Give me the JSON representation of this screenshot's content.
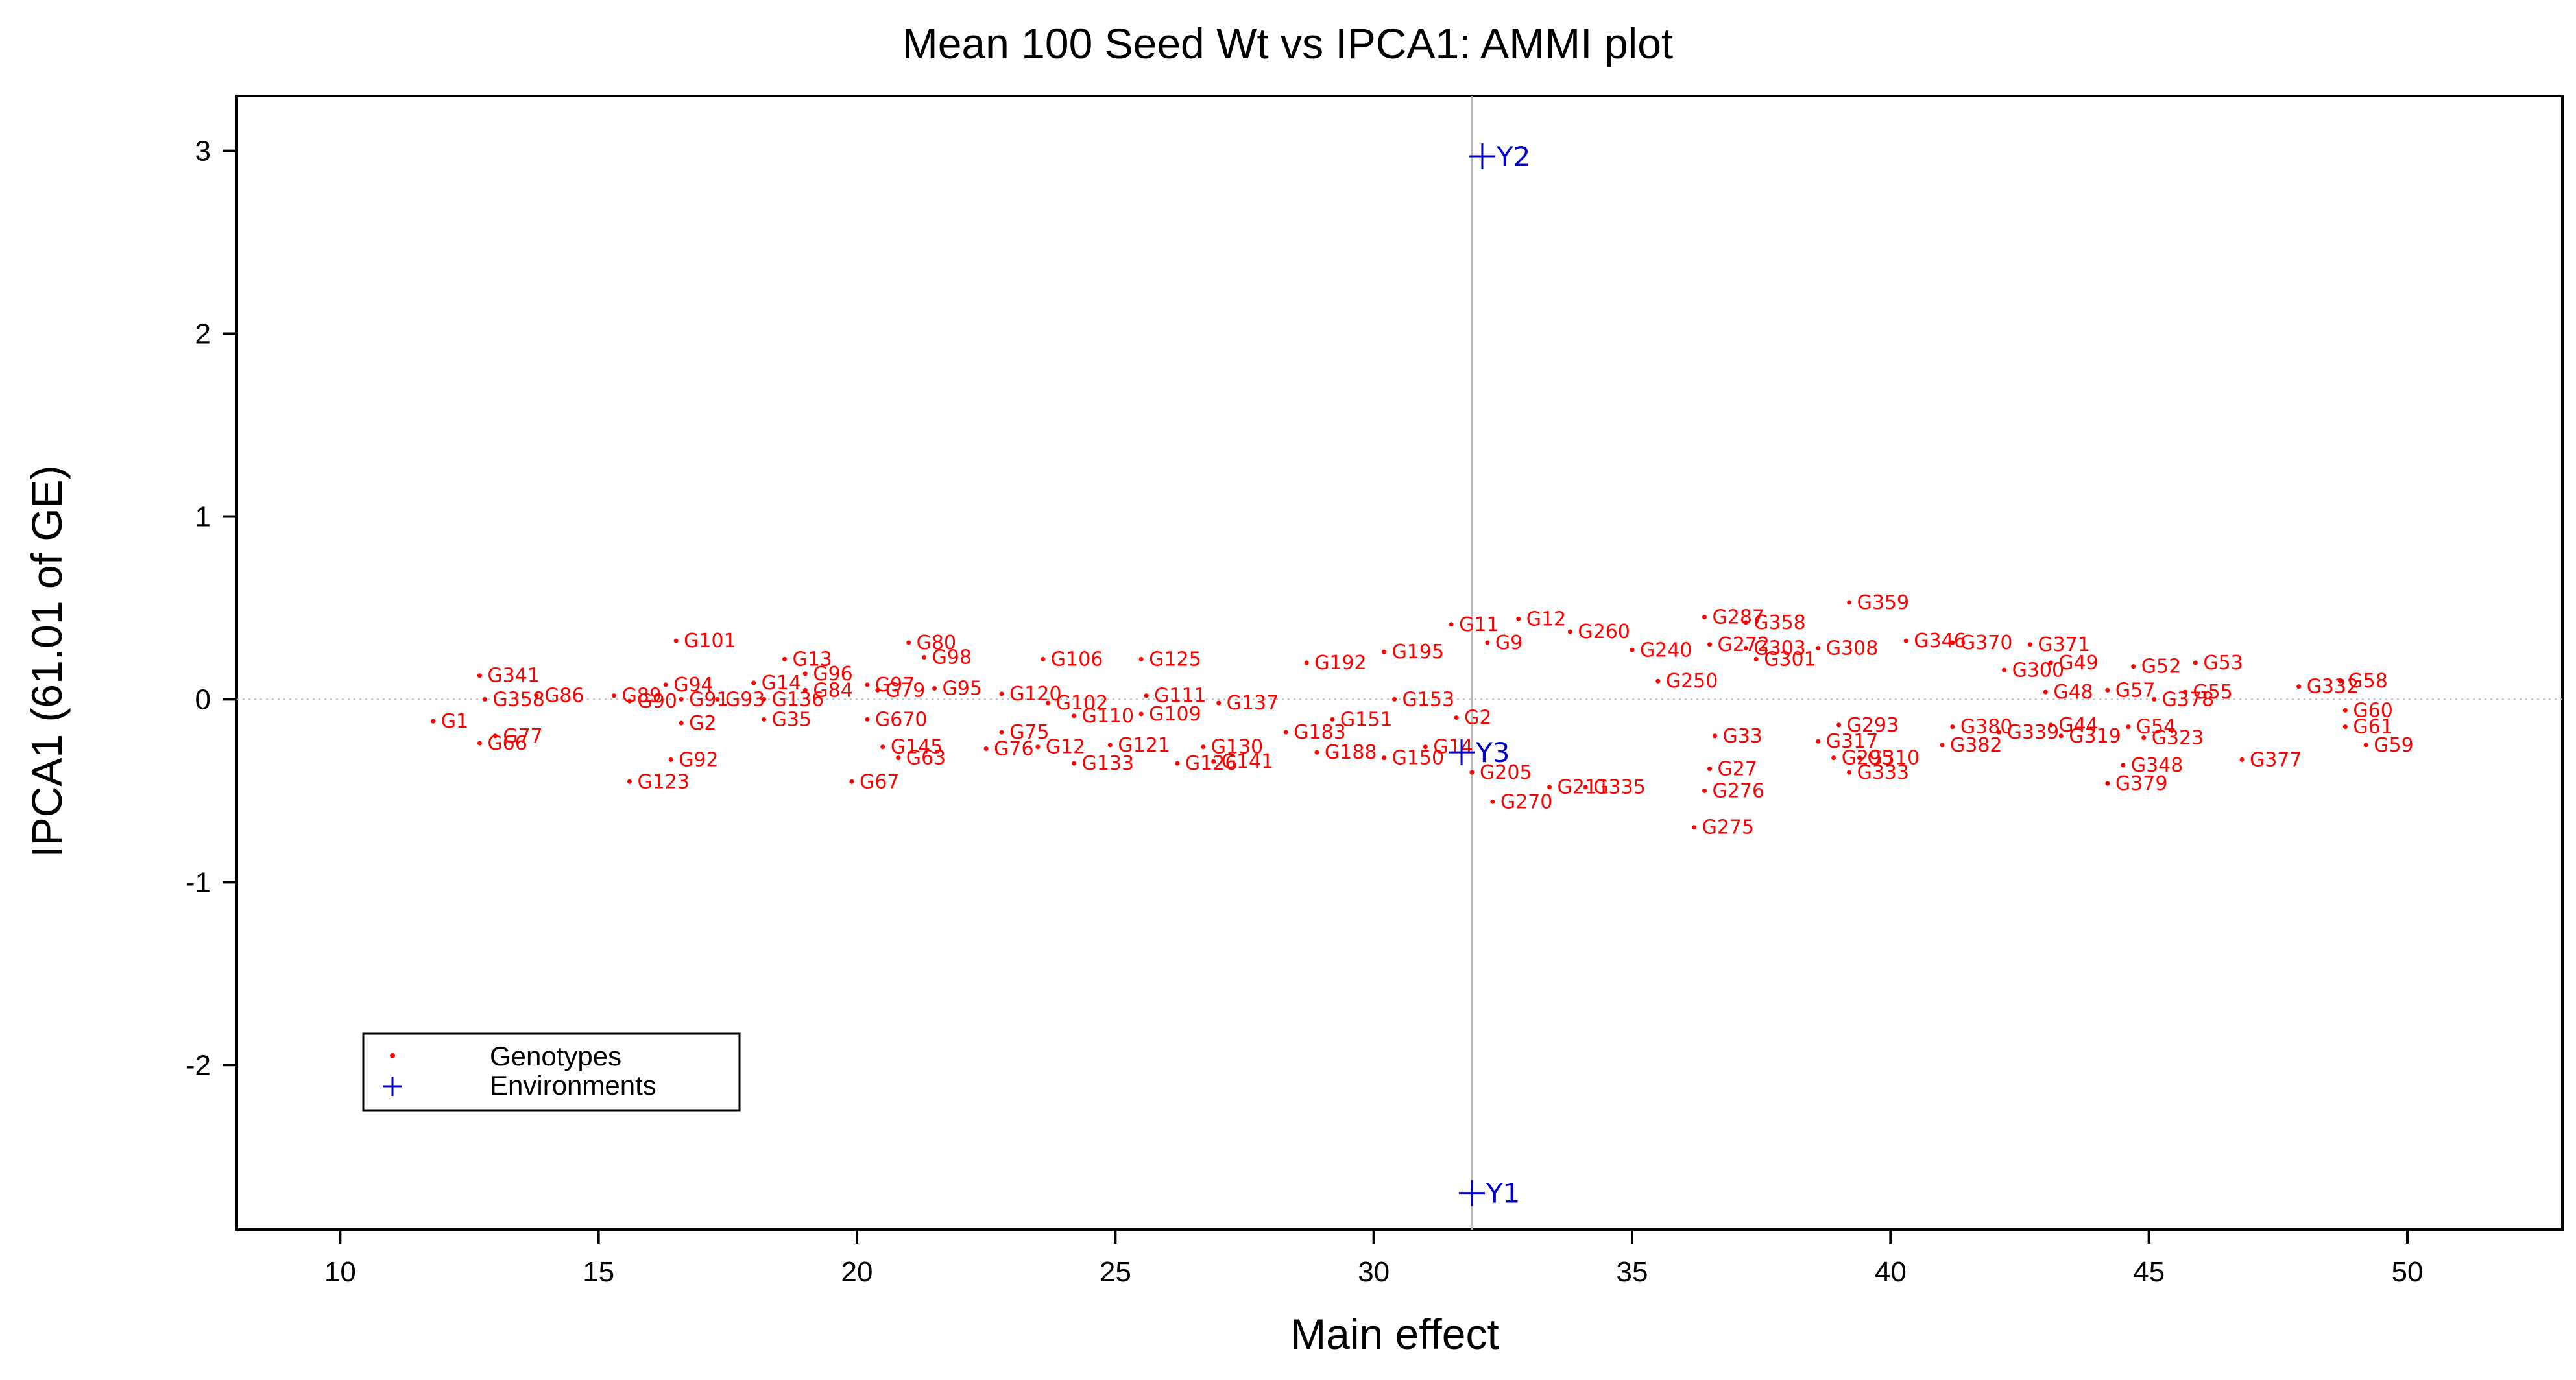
{
  "chart_data": {
    "type": "scatter",
    "title": "Mean 100 Seed Wt vs IPCA1: AMMI plot",
    "xlabel": "Main effect",
    "ylabel": "IPCA1 (61.01 of GE)",
    "xlim": [
      8,
      53
    ],
    "ylim": [
      -2.9,
      3.3
    ],
    "xticks": [
      10,
      15,
      20,
      25,
      30,
      35,
      40,
      45,
      50
    ],
    "yticks": [
      -2,
      -1,
      0,
      1,
      2,
      3
    ],
    "grid": false,
    "reference_lines": {
      "x": 31.9,
      "y": 0
    },
    "legend": {
      "position": "bottom-left",
      "entries": [
        {
          "name": "Genotypes",
          "marker": "dot",
          "color": "#ff0000"
        },
        {
          "name": "Environments",
          "marker": "plus",
          "color": "#0000cc"
        }
      ]
    },
    "series": [
      {
        "name": "Environments",
        "color": "#0000cc",
        "points": [
          {
            "label": "Y2",
            "x": 32.1,
            "y": 2.97
          },
          {
            "label": "Y1",
            "x": 31.9,
            "y": -2.7
          },
          {
            "label": "Y3",
            "x": 31.7,
            "y": -0.29
          }
        ]
      },
      {
        "name": "Genotypes",
        "color": "#ff0000",
        "points": [
          {
            "label": "G1",
            "x": 11.8,
            "y": -0.12
          },
          {
            "label": "G341",
            "x": 12.7,
            "y": 0.13
          },
          {
            "label": "G358",
            "x": 12.8,
            "y": 0.0
          },
          {
            "label": "G66",
            "x": 12.7,
            "y": -0.24
          },
          {
            "label": "G77",
            "x": 13.0,
            "y": -0.2
          },
          {
            "label": "G86",
            "x": 13.8,
            "y": 0.02
          },
          {
            "label": "G89",
            "x": 15.3,
            "y": 0.02
          },
          {
            "label": "G90",
            "x": 15.6,
            "y": -0.01
          },
          {
            "label": "G123",
            "x": 15.6,
            "y": -0.45
          },
          {
            "label": "G94",
            "x": 16.3,
            "y": 0.08
          },
          {
            "label": "G92",
            "x": 16.4,
            "y": -0.33
          },
          {
            "label": "G101",
            "x": 16.5,
            "y": 0.32
          },
          {
            "label": "G2",
            "x": 16.6,
            "y": -0.13
          },
          {
            "label": "G91",
            "x": 16.6,
            "y": 0.0
          },
          {
            "label": "G93",
            "x": 17.3,
            "y": 0.0
          },
          {
            "label": "G35",
            "x": 18.2,
            "y": -0.11
          },
          {
            "label": "G136",
            "x": 18.2,
            "y": 0.0
          },
          {
            "label": "G14",
            "x": 18.0,
            "y": 0.09
          },
          {
            "label": "G13",
            "x": 18.6,
            "y": 0.22
          },
          {
            "label": "G96",
            "x": 19.0,
            "y": 0.14
          },
          {
            "label": "G84",
            "x": 19.0,
            "y": 0.05
          },
          {
            "label": "G67",
            "x": 19.9,
            "y": -0.45
          },
          {
            "label": "G97",
            "x": 20.2,
            "y": 0.08
          },
          {
            "label": "G79",
            "x": 20.4,
            "y": 0.05
          },
          {
            "label": "G670",
            "x": 20.2,
            "y": -0.11
          },
          {
            "label": "G145",
            "x": 20.5,
            "y": -0.26
          },
          {
            "label": "G63",
            "x": 20.8,
            "y": -0.32
          },
          {
            "label": "G80",
            "x": 21.0,
            "y": 0.31
          },
          {
            "label": "G98",
            "x": 21.3,
            "y": 0.23
          },
          {
            "label": "G95",
            "x": 21.5,
            "y": 0.06
          },
          {
            "label": "G76",
            "x": 22.5,
            "y": -0.27
          },
          {
            "label": "G75",
            "x": 22.8,
            "y": -0.18
          },
          {
            "label": "G120",
            "x": 22.8,
            "y": 0.03
          },
          {
            "label": "G106",
            "x": 23.6,
            "y": 0.22
          },
          {
            "label": "G12",
            "x": 23.5,
            "y": -0.26
          },
          {
            "label": "G102",
            "x": 23.7,
            "y": -0.02
          },
          {
            "label": "G133",
            "x": 24.2,
            "y": -0.35
          },
          {
            "label": "G110",
            "x": 24.2,
            "y": -0.09
          },
          {
            "label": "G121",
            "x": 24.9,
            "y": -0.25
          },
          {
            "label": "G109",
            "x": 25.5,
            "y": -0.08
          },
          {
            "label": "G125",
            "x": 25.5,
            "y": 0.22
          },
          {
            "label": "G111",
            "x": 25.6,
            "y": 0.02
          },
          {
            "label": "G126",
            "x": 26.2,
            "y": -0.35
          },
          {
            "label": "G141",
            "x": 26.9,
            "y": -0.34
          },
          {
            "label": "G130",
            "x": 26.7,
            "y": -0.26
          },
          {
            "label": "G137",
            "x": 27.0,
            "y": -0.02
          },
          {
            "label": "G183",
            "x": 28.3,
            "y": -0.18
          },
          {
            "label": "G188",
            "x": 28.9,
            "y": -0.29
          },
          {
            "label": "G192",
            "x": 28.7,
            "y": 0.2
          },
          {
            "label": "G151",
            "x": 29.2,
            "y": -0.11
          },
          {
            "label": "G195",
            "x": 30.2,
            "y": 0.26
          },
          {
            "label": "G150",
            "x": 30.2,
            "y": -0.32
          },
          {
            "label": "G14",
            "x": 31.0,
            "y": -0.26
          },
          {
            "label": "G153",
            "x": 30.4,
            "y": 0.0
          },
          {
            "label": "G11",
            "x": 31.5,
            "y": 0.41
          },
          {
            "label": "G2",
            "x": 31.6,
            "y": -0.1
          },
          {
            "label": "G12",
            "x": 32.8,
            "y": 0.44
          },
          {
            "label": "G9",
            "x": 32.2,
            "y": 0.31
          },
          {
            "label": "G205",
            "x": 31.9,
            "y": -0.4
          },
          {
            "label": "G270",
            "x": 32.3,
            "y": -0.56
          },
          {
            "label": "G260",
            "x": 33.8,
            "y": 0.37
          },
          {
            "label": "G211",
            "x": 33.4,
            "y": -0.48
          },
          {
            "label": "G335",
            "x": 34.1,
            "y": -0.48
          },
          {
            "label": "G240",
            "x": 35.0,
            "y": 0.27
          },
          {
            "label": "G250",
            "x": 35.5,
            "y": 0.1
          },
          {
            "label": "G275",
            "x": 36.2,
            "y": -0.7
          },
          {
            "label": "G276",
            "x": 36.4,
            "y": -0.5
          },
          {
            "label": "G27",
            "x": 36.5,
            "y": -0.38
          },
          {
            "label": "G33",
            "x": 36.6,
            "y": -0.2
          },
          {
            "label": "G287",
            "x": 36.4,
            "y": 0.45
          },
          {
            "label": "G358",
            "x": 37.2,
            "y": 0.42
          },
          {
            "label": "G272",
            "x": 36.5,
            "y": 0.3
          },
          {
            "label": "G301",
            "x": 37.4,
            "y": 0.22
          },
          {
            "label": "G303",
            "x": 37.2,
            "y": 0.28
          },
          {
            "label": "G308",
            "x": 38.6,
            "y": 0.28
          },
          {
            "label": "G359",
            "x": 39.2,
            "y": 0.53
          },
          {
            "label": "G317",
            "x": 38.6,
            "y": -0.23
          },
          {
            "label": "G295",
            "x": 38.9,
            "y": -0.32
          },
          {
            "label": "G310",
            "x": 39.4,
            "y": -0.32
          },
          {
            "label": "G333",
            "x": 39.2,
            "y": -0.4
          },
          {
            "label": "G293",
            "x": 39.0,
            "y": -0.14
          },
          {
            "label": "G346",
            "x": 40.3,
            "y": 0.32
          },
          {
            "label": "G370",
            "x": 41.2,
            "y": 0.31
          },
          {
            "label": "G380",
            "x": 41.2,
            "y": -0.15
          },
          {
            "label": "G382",
            "x": 41.0,
            "y": -0.25
          },
          {
            "label": "G300",
            "x": 42.2,
            "y": 0.16
          },
          {
            "label": "G339",
            "x": 42.1,
            "y": -0.18
          },
          {
            "label": "G319",
            "x": 43.3,
            "y": -0.2
          },
          {
            "label": "G371",
            "x": 42.7,
            "y": 0.3
          },
          {
            "label": "G49",
            "x": 43.1,
            "y": 0.2
          },
          {
            "label": "G48",
            "x": 43.0,
            "y": 0.04
          },
          {
            "label": "G44",
            "x": 43.1,
            "y": -0.14
          },
          {
            "label": "G57",
            "x": 44.2,
            "y": 0.05
          },
          {
            "label": "G52",
            "x": 44.7,
            "y": 0.18
          },
          {
            "label": "G53",
            "x": 45.9,
            "y": 0.2
          },
          {
            "label": "G54",
            "x": 44.6,
            "y": -0.15
          },
          {
            "label": "G55",
            "x": 45.7,
            "y": 0.04
          },
          {
            "label": "G378",
            "x": 45.1,
            "y": 0.0
          },
          {
            "label": "G348",
            "x": 44.5,
            "y": -0.36
          },
          {
            "label": "G379",
            "x": 44.2,
            "y": -0.46
          },
          {
            "label": "G323",
            "x": 44.9,
            "y": -0.21
          },
          {
            "label": "G377",
            "x": 46.8,
            "y": -0.33
          },
          {
            "label": "G332",
            "x": 47.9,
            "y": 0.07
          },
          {
            "label": "G58",
            "x": 48.7,
            "y": 0.1
          },
          {
            "label": "G60",
            "x": 48.8,
            "y": -0.06
          },
          {
            "label": "G61",
            "x": 48.8,
            "y": -0.15
          },
          {
            "label": "G59",
            "x": 49.2,
            "y": -0.25
          }
        ]
      }
    ]
  }
}
